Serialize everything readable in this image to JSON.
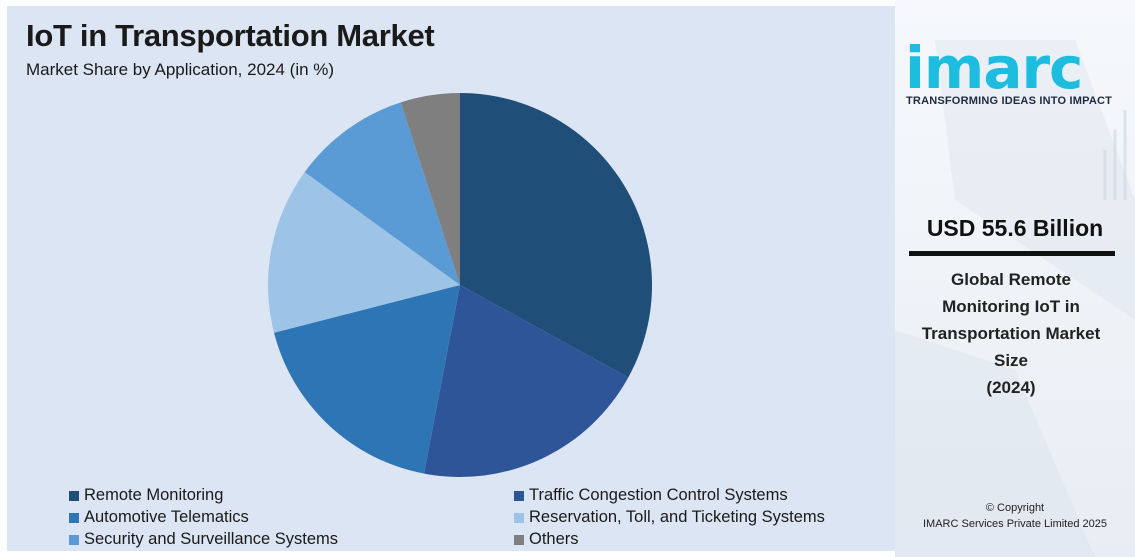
{
  "title": "IoT in Transportation Market",
  "subtitle": "Market Share by Application, 2024 (in %)",
  "side": {
    "logo": "imarc",
    "tagline": "TRANSFORMING IDEAS INTO IMPACT",
    "market_value": "USD 55.6 Billion",
    "market_label_lines": [
      "Global Remote",
      "Monitoring IoT in",
      "Transportation Market",
      "Size",
      "(2024)"
    ],
    "copyright_line1": "© Copyright",
    "copyright_line2": "IMARC Services Private Limited 2025"
  },
  "colors": {
    "panel_bg": "#dce5f3",
    "logo": "#1dbde0"
  },
  "chart_data": {
    "type": "pie",
    "categories": [
      "Remote Monitoring",
      "Traffic Congestion Control Systems",
      "Automotive Telematics",
      "Reservation, Toll, and Ticketing Systems",
      "Security and Surveillance Systems",
      "Others"
    ],
    "values": [
      33,
      20,
      18,
      14,
      10,
      5
    ],
    "colors": [
      "#1f4e79",
      "#2e5597",
      "#2e75b6",
      "#9dc3e6",
      "#5b9bd5",
      "#7f7f7f"
    ],
    "legend_position": "bottom",
    "title": "IoT in Transportation Market",
    "subtitle": "Market Share by Application, 2024 (in %)"
  }
}
